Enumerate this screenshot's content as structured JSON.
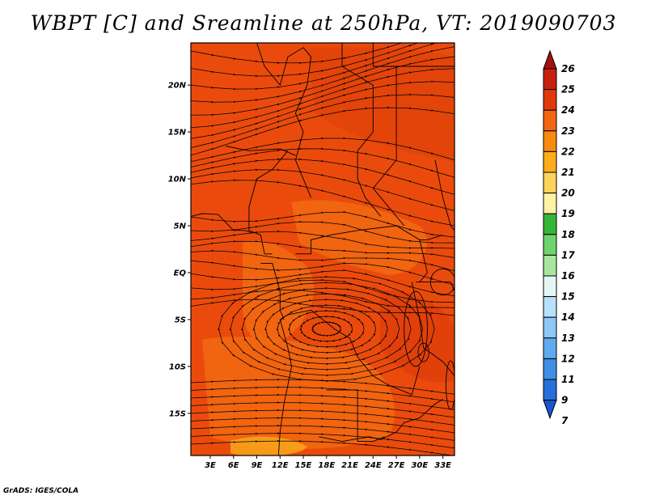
{
  "title": "WBPT [C] and Sreamline at 250hPa, VT: 2019090703",
  "footer": "GrADS: IGES/COLA",
  "map": {
    "lat_ticks": [
      "20N",
      "15N",
      "10N",
      "5N",
      "EQ",
      "5S",
      "10S",
      "15S"
    ],
    "lat_values": [
      20,
      15,
      10,
      5,
      0,
      -5,
      -10,
      -15
    ],
    "lon_ticks": [
      "3E",
      "6E",
      "9E",
      "12E",
      "15E",
      "18E",
      "21E",
      "24E",
      "27E",
      "30E",
      "33E"
    ],
    "lon_values": [
      3,
      6,
      9,
      12,
      15,
      18,
      21,
      24,
      27,
      30,
      33
    ],
    "lon_range": [
      0.5,
      34.5
    ],
    "lat_range": [
      -19.5,
      24.5
    ],
    "field_colors": {
      "dominant": "#ea4b0c",
      "warm_patch": "#f26a12",
      "light_patch": "#f7a21a",
      "dark_patch": "#d8380a"
    }
  },
  "colorbar": {
    "labels": [
      "26",
      "25",
      "24",
      "23",
      "22",
      "21",
      "20",
      "19",
      "18",
      "17",
      "16",
      "15",
      "14",
      "13",
      "12",
      "11",
      "9",
      "7"
    ],
    "colors": [
      "#a50f0f",
      "#c8200e",
      "#e0380c",
      "#f26611",
      "#f88a0f",
      "#fbae1a",
      "#fcd35b",
      "#fff2a5",
      "#36b638",
      "#6ed46e",
      "#a8e6a0",
      "#e3f6f4",
      "#b9e0fb",
      "#8cc7f6",
      "#62aaef",
      "#3e8fe6",
      "#256fdb",
      "#1756d0"
    ]
  }
}
